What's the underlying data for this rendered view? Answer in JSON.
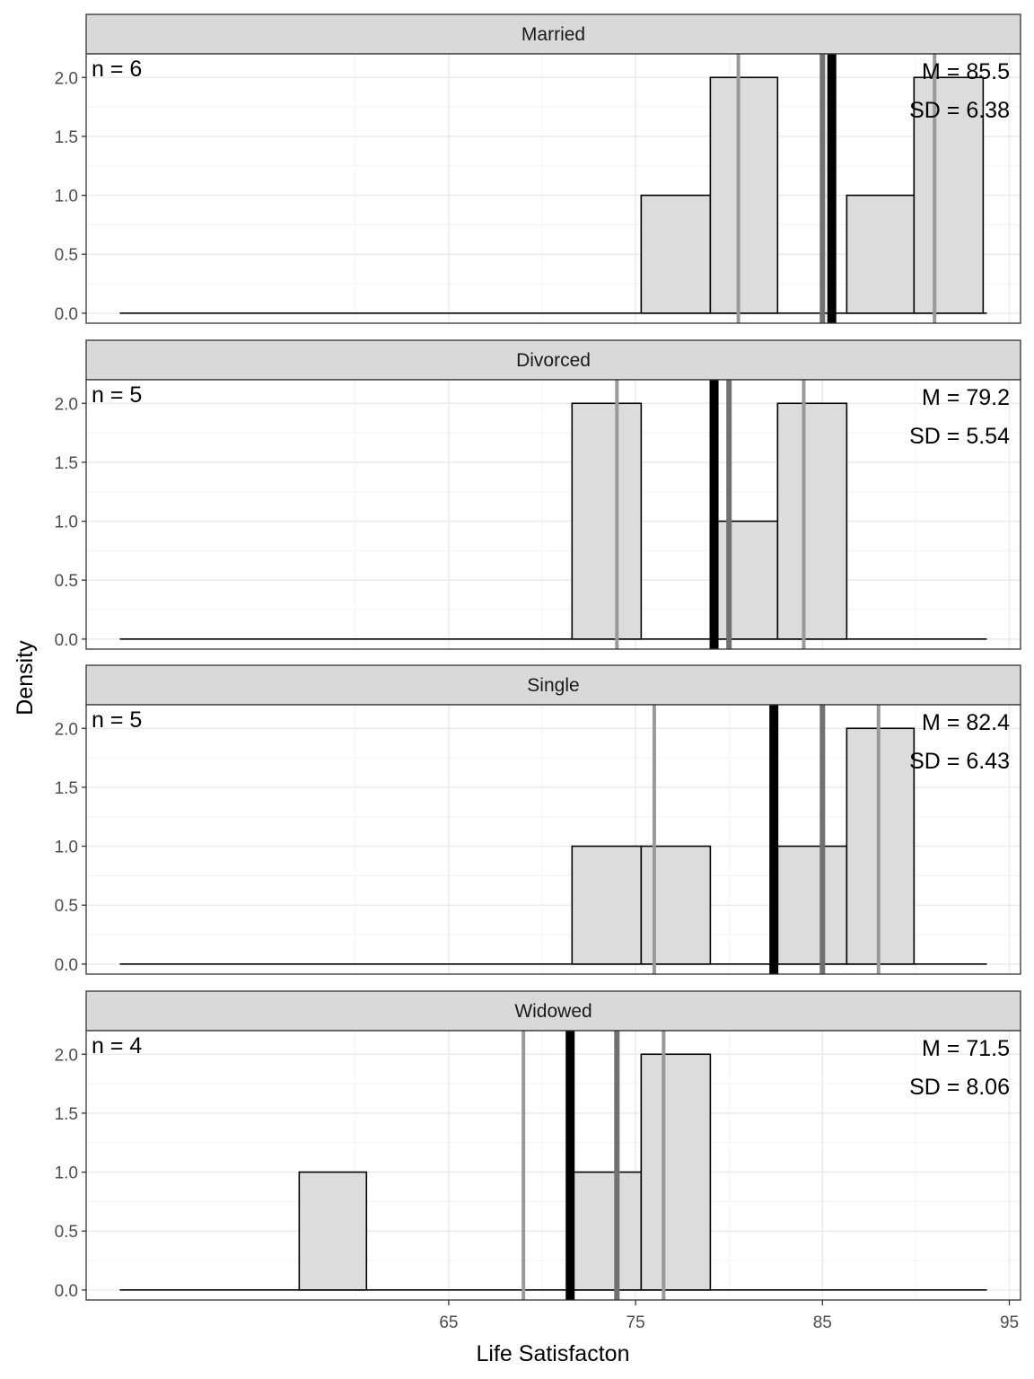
{
  "chart_data": {
    "type": "bar",
    "subtype": "faceted-histogram",
    "xlabel": "Life Satisfacton",
    "ylabel": "Density",
    "xlim": [
      45.6,
      95.6
    ],
    "ylim": [
      -0.085,
      2.2
    ],
    "x_ticks": [
      65,
      75,
      85,
      95
    ],
    "y_ticks": [
      "0.0",
      "0.5",
      "1.0",
      "1.5",
      "2.0"
    ],
    "bin_width": 3.66,
    "baseline_range": [
      47.4,
      93.8
    ],
    "grid": true,
    "colors": {
      "bar_fill": "#dcdcdc",
      "bar_stroke": "#000000",
      "mean_line": "#000000",
      "median_line": "#707070",
      "quartile_line": "#999999",
      "strip_fill": "#d9d9d9",
      "grid": "#ebebeb"
    },
    "facets": [
      {
        "strip": "Married",
        "n_label": "n = 6",
        "mean_label": "M = 85.5",
        "sd_label": "SD = 6.38",
        "mean": 85.5,
        "median": 85.0,
        "quartiles": [
          80.5,
          91.0
        ],
        "bars": [
          {
            "x0": 75.3,
            "x1": 79.0,
            "y": 1
          },
          {
            "x0": 79.0,
            "x1": 82.6,
            "y": 2
          },
          {
            "x0": 86.3,
            "x1": 89.9,
            "y": 1
          },
          {
            "x0": 89.9,
            "x1": 93.6,
            "y": 2
          }
        ]
      },
      {
        "strip": "Divorced",
        "n_label": "n = 5",
        "mean_label": "M = 79.2",
        "sd_label": "SD = 5.54",
        "mean": 79.2,
        "median": 80.0,
        "quartiles": [
          74.0,
          84.0
        ],
        "bars": [
          {
            "x0": 71.6,
            "x1": 75.3,
            "y": 2
          },
          {
            "x0": 79.0,
            "x1": 82.6,
            "y": 1
          },
          {
            "x0": 82.6,
            "x1": 86.3,
            "y": 2
          }
        ]
      },
      {
        "strip": "Single",
        "n_label": "n = 5",
        "mean_label": "M = 82.4",
        "sd_label": "SD = 6.43",
        "mean": 82.4,
        "median": 85.0,
        "quartiles": [
          76.0,
          88.0
        ],
        "bars": [
          {
            "x0": 71.6,
            "x1": 75.3,
            "y": 1
          },
          {
            "x0": 75.3,
            "x1": 79.0,
            "y": 1
          },
          {
            "x0": 82.6,
            "x1": 86.3,
            "y": 1
          },
          {
            "x0": 86.3,
            "x1": 89.9,
            "y": 2
          }
        ]
      },
      {
        "strip": "Widowed",
        "n_label": "n = 4",
        "mean_label": "M = 71.5",
        "sd_label": "SD = 8.06",
        "mean": 71.5,
        "median": 74.0,
        "quartiles": [
          69.0,
          76.5
        ],
        "bars": [
          {
            "x0": 57.0,
            "x1": 60.6,
            "y": 1
          },
          {
            "x0": 71.6,
            "x1": 75.3,
            "y": 1
          },
          {
            "x0": 75.3,
            "x1": 79.0,
            "y": 2
          }
        ]
      }
    ]
  }
}
